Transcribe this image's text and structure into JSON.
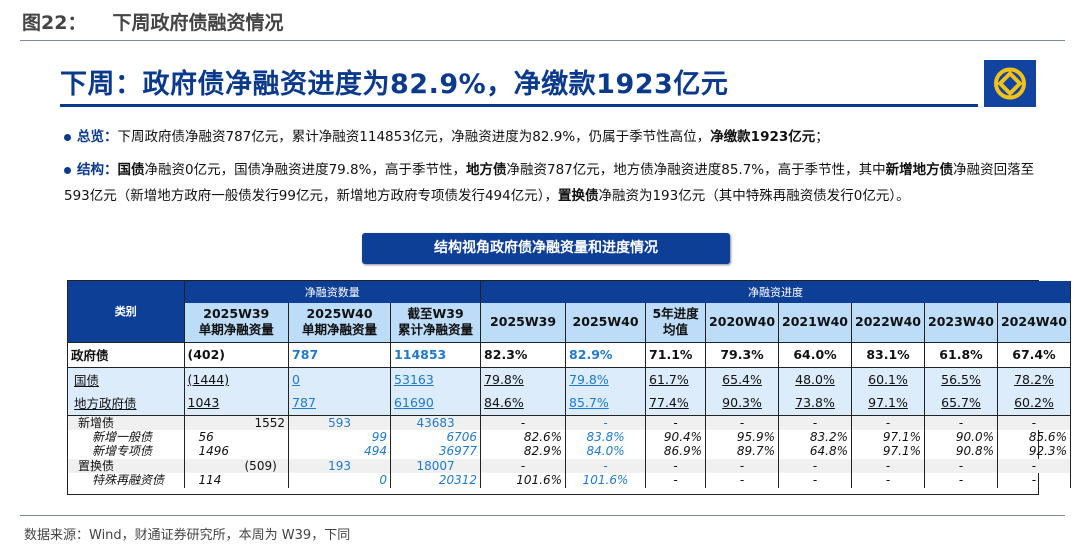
{
  "figure": {
    "label": "图22：",
    "title": "下周政府债融资情况"
  },
  "headline": "下周：政府债净融资进度为82.9%，净缴款1923亿元",
  "logo": "bank-logo",
  "summary": {
    "key": "总览",
    "sep": "：",
    "text": "下周政府债净融资787亿元，累计净融资114853亿元，净融资进度为82.9%，仍属于季节性高位，",
    "bold": "净缴款1923亿元",
    "end": "；"
  },
  "structure": {
    "key": "结构",
    "sep": "：",
    "parts": [
      {
        "b": true,
        "t": "国债"
      },
      {
        "b": false,
        "t": "净融资0亿元，国债净融资进度79.8%，高于季节性，"
      },
      {
        "b": true,
        "t": "地方债"
      },
      {
        "b": false,
        "t": "净融资787亿元，地方债净融资进度85.7%，高于季节性，其中"
      },
      {
        "b": true,
        "t": "新增地方债"
      },
      {
        "b": false,
        "t": "净融资回落至593亿元（新增地方政府一般债发行99亿元，新增地方政府专项债发行494亿元），"
      },
      {
        "b": true,
        "t": "置换债"
      },
      {
        "b": false,
        "t": "净融资为193亿元（其中特殊再融资债发行0亿元）。"
      }
    ]
  },
  "table_title": "结构视角政府债净融资量和进度情况",
  "table": {
    "category_header": "类别",
    "group_headers": [
      "净融资数量",
      "净融资进度"
    ],
    "columns": [
      [
        "2025W39",
        "单期净融资量"
      ],
      [
        "2025W40",
        "单期净融资量"
      ],
      [
        "截至W39",
        "累计净融资量"
      ],
      [
        "2025W39"
      ],
      [
        "2025W40"
      ],
      [
        "5年进度",
        "均值"
      ],
      [
        "2020W40"
      ],
      [
        "2021W40"
      ],
      [
        "2022W40"
      ],
      [
        "2023W40"
      ],
      [
        "2024W40"
      ]
    ],
    "rows": [
      {
        "name": "政府债",
        "style": "r0",
        "cells": [
          "(402)",
          "787",
          "114853",
          "82.3%",
          "82.9%",
          "71.1%",
          "79.3%",
          "64.0%",
          "83.1%",
          "61.8%",
          "67.4%"
        ]
      },
      {
        "name": "国债",
        "style": "r1 first",
        "cells": [
          "(1444)",
          "0",
          "53163",
          "79.8%",
          "79.8%",
          "61.7%",
          "65.4%",
          "48.0%",
          "60.1%",
          "56.5%",
          "78.2%"
        ]
      },
      {
        "name": "地方政府债",
        "style": "r1",
        "cells": [
          "1043",
          "787",
          "61690",
          "84.6%",
          "85.7%",
          "77.4%",
          "90.3%",
          "73.8%",
          "97.1%",
          "65.7%",
          "60.2%"
        ]
      },
      {
        "name": "新增债",
        "style": "rs g first",
        "cells": [
          "1552",
          "593",
          "43683",
          "-",
          "-",
          "-",
          "-",
          "-",
          "-",
          "-",
          "-"
        ]
      },
      {
        "name": "新增一般债",
        "style": "rs ital",
        "cells": [
          "56",
          "99",
          "6706",
          "82.6%",
          "83.8%",
          "90.4%",
          "95.9%",
          "83.2%",
          "97.1%",
          "90.0%",
          "85.6%"
        ]
      },
      {
        "name": "新增专项债",
        "style": "rs ital",
        "cells": [
          "1496",
          "494",
          "36977",
          "82.9%",
          "84.0%",
          "86.9%",
          "89.7%",
          "64.8%",
          "97.1%",
          "90.8%",
          "92.3%"
        ]
      },
      {
        "name": "置换债",
        "style": "rs g",
        "cells": [
          "(509)",
          "193",
          "18007",
          "-",
          "-",
          "-",
          "-",
          "-",
          "-",
          "-",
          "-"
        ]
      },
      {
        "name": "特殊再融资债",
        "style": "rs ital",
        "cells": [
          "114",
          "0",
          "20312",
          "101.6%",
          "101.6%",
          "-",
          "-",
          "-",
          "-",
          "-",
          "-"
        ]
      }
    ]
  },
  "source": "数据来源：Wind，财通证券研究所，本周为 W39，下同",
  "colors": {
    "brand": "#0e3f97",
    "header_light": "#bcdcf7",
    "link_blue": "#1f7ac9",
    "gold": "#f2c21b"
  }
}
